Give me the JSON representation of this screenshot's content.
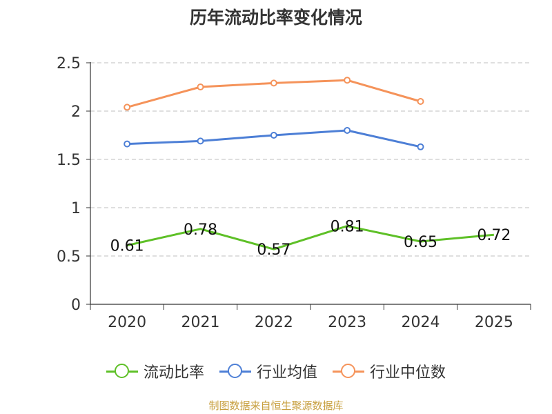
{
  "chart_data": {
    "type": "line",
    "title": "历年流动比率变化情况",
    "categories": [
      "2020",
      "2021",
      "2022",
      "2023",
      "2024",
      "2025"
    ],
    "ylim": [
      0,
      2.5
    ],
    "yticks": [
      "0",
      "0.5",
      "1",
      "1.5",
      "2",
      "2.5"
    ],
    "ytick_values": [
      0,
      0.5,
      1,
      1.5,
      2,
      2.5
    ],
    "grid": true,
    "legend_position": "bottom",
    "series": [
      {
        "name": "流动比率",
        "color": "#5ec027",
        "values": [
          0.61,
          0.78,
          0.57,
          0.81,
          0.65,
          0.72
        ],
        "labels": [
          "0.61",
          "0.78",
          "0.57",
          "0.81",
          "0.65",
          "0.72"
        ],
        "show_markers": false
      },
      {
        "name": "行业均值",
        "color": "#4d7fd6",
        "values": [
          1.66,
          1.69,
          1.75,
          1.8,
          1.63,
          null
        ],
        "show_markers": true
      },
      {
        "name": "行业中位数",
        "color": "#f5935a",
        "values": [
          2.04,
          2.25,
          2.29,
          2.32,
          2.1,
          null
        ],
        "show_markers": true
      }
    ]
  },
  "source_note": "制图数据来自恒生聚源数据库"
}
